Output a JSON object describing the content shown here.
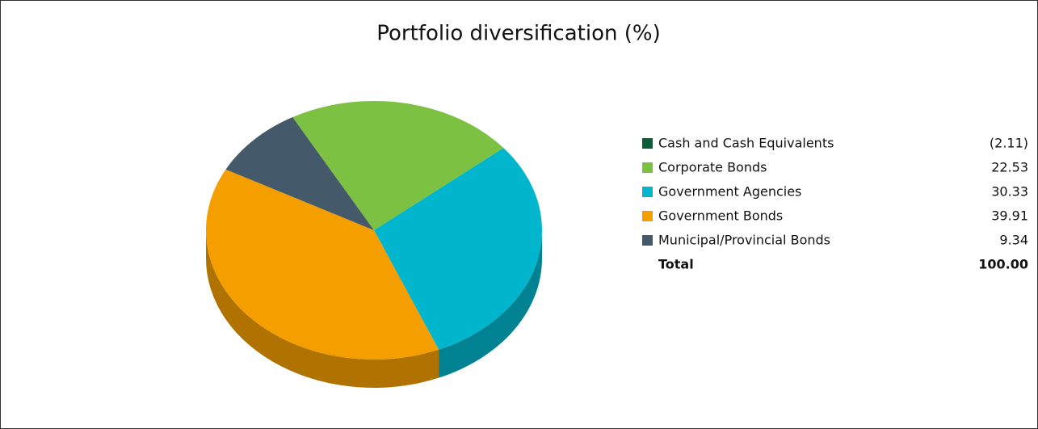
{
  "chart_data": {
    "type": "pie",
    "title": "Portfolio diversification (%)",
    "categories": [
      "Cash and Cash Equivalents",
      "Corporate Bonds",
      "Government Agencies",
      "Government Bonds",
      "Municipal/Provincial Bonds"
    ],
    "values": [
      -2.11,
      22.53,
      30.33,
      39.91,
      9.34
    ],
    "value_labels": [
      "(2.11)",
      "22.53",
      "30.33",
      "39.91",
      "9.34"
    ],
    "colors": [
      "#0b5e3a",
      "#7dc142",
      "#00b5cc",
      "#f49e00",
      "#445a6a"
    ],
    "total": {
      "label": "Total",
      "value": 100,
      "value_label": "100.00"
    }
  }
}
